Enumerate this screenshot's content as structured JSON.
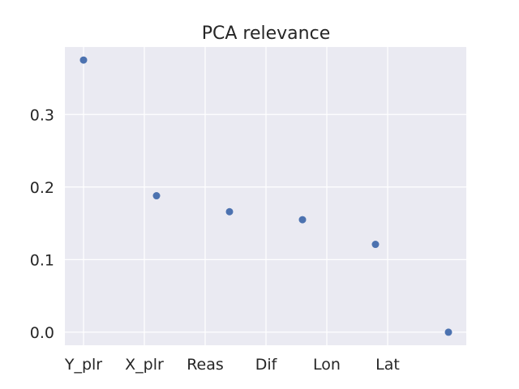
{
  "chart_data": {
    "type": "scatter",
    "title": "PCA relevance",
    "xlabel": "",
    "ylabel": "",
    "x_tick_labels": [
      "Y_plr",
      "X_plr",
      "Reas",
      "Dif",
      "Lon",
      "Lat"
    ],
    "y_ticks": [
      0.0,
      0.1,
      0.2,
      0.3
    ],
    "y_tick_labels": [
      "0.0",
      "0.1",
      "0.2",
      "0.3"
    ],
    "ylim": [
      -0.018,
      0.393
    ],
    "xlim": [
      -0.25,
      5.25
    ],
    "grid": true,
    "legend": null,
    "series": [
      {
        "x": [
          0,
          1,
          2,
          3,
          4,
          5
        ],
        "values": [
          0.375,
          0.188,
          0.166,
          0.155,
          0.121,
          0.0
        ]
      }
    ],
    "point_color": "#4c72b0",
    "background_color": "#eaeaf2"
  }
}
